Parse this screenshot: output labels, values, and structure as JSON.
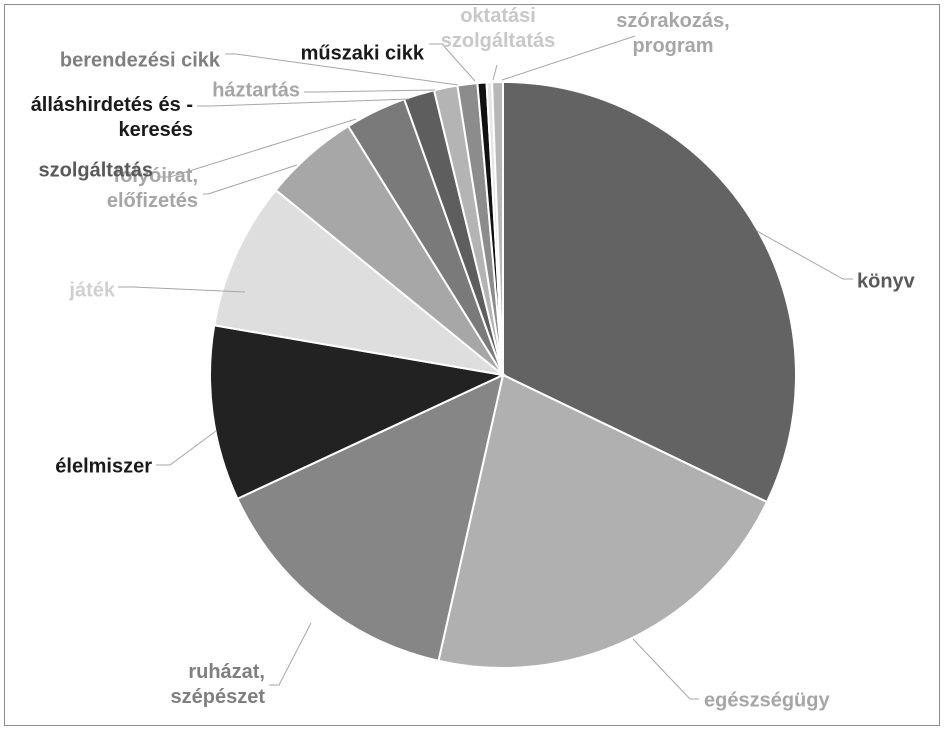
{
  "chart_data": {
    "type": "pie",
    "title": "",
    "legend": "none",
    "slices": [
      {
        "label": [
          "könyv"
        ],
        "value": 32.3,
        "color": "#636363",
        "label_color": "#595959"
      },
      {
        "label": [
          "egészségügy"
        ],
        "value": 21.5,
        "color": "#b0b0b0",
        "label_color": "#a6a6a6"
      },
      {
        "label": [
          "ruházat,",
          "szépészet"
        ],
        "value": 14.6,
        "color": "#868686",
        "label_color": "#7f7f7f"
      },
      {
        "label": [
          "élelmiszer"
        ],
        "value": 9.7,
        "color": "#222222",
        "label_color": "#1a1a1a"
      },
      {
        "label": [
          "játék"
        ],
        "value": 8.2,
        "color": "#dedede",
        "label_color": "#d0d0d0"
      },
      {
        "label": [
          "folyóirat,",
          "előfizetés"
        ],
        "value": 5.3,
        "color": "#a7a7a7",
        "label_color": "#a6a6a6"
      },
      {
        "label": [
          "szolgáltatás"
        ],
        "value": 3.4,
        "color": "#7a7a7a",
        "label_color": "#595959"
      },
      {
        "label": [
          "álláshirdetés és -",
          "keresés"
        ],
        "value": 1.7,
        "color": "#5e5e5e",
        "label_color": "#1a1a1a"
      },
      {
        "label": [
          "háztartás"
        ],
        "value": 1.3,
        "color": "#b4b4b4",
        "label_color": "#a6a6a6"
      },
      {
        "label": [
          "berendezési cikk"
        ],
        "value": 1.1,
        "color": "#8c8c8c",
        "label_color": "#7f7f7f"
      },
      {
        "label": [
          "műszaki cikk"
        ],
        "value": 0.5,
        "color": "#111111",
        "label_color": "#1a1a1a"
      },
      {
        "label": [
          "oktatási",
          "szolgáltatás"
        ],
        "value": 0.3,
        "color": "#e6e6e6",
        "label_color": "#c8c8c8"
      },
      {
        "label": [
          "szórakozás,",
          "program"
        ],
        "value": 0.6,
        "color": "#b8b8b8",
        "label_color": "#a6a6a6"
      }
    ]
  }
}
